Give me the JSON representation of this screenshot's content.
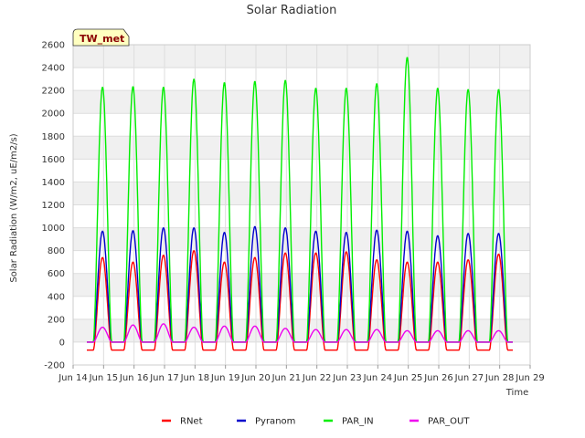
{
  "chart_data": {
    "type": "line",
    "title": "Solar Radiation",
    "xlabel": "Time",
    "ylabel": "Solar Radiation (W/m2, uE/m2/s)",
    "badge": "TW_met",
    "ylim": [
      -200,
      2600
    ],
    "yticks": [
      -200,
      0,
      200,
      400,
      600,
      800,
      1000,
      1200,
      1400,
      1600,
      1800,
      2000,
      2200,
      2400,
      2600
    ],
    "xlim": [
      14,
      29
    ],
    "xticks": [
      {
        "x": 14,
        "label": "Jun 14"
      },
      {
        "x": 15,
        "label": "Jun 15"
      },
      {
        "x": 16,
        "label": "Jun 16"
      },
      {
        "x": 17,
        "label": "Jun 17"
      },
      {
        "x": 18,
        "label": "Jun 18"
      },
      {
        "x": 19,
        "label": "Jun 19"
      },
      {
        "x": 20,
        "label": "Jun 20"
      },
      {
        "x": 21,
        "label": "Jun 21"
      },
      {
        "x": 22,
        "label": "Jun 22"
      },
      {
        "x": 23,
        "label": "Jun 23"
      },
      {
        "x": 24,
        "label": "Jun 24"
      },
      {
        "x": 25,
        "label": "Jun 25"
      },
      {
        "x": 26,
        "label": "Jun 26"
      },
      {
        "x": 27,
        "label": "Jun 27"
      },
      {
        "x": 28,
        "label": "Jun 28"
      },
      {
        "x": 29,
        "label": "Jun 29"
      }
    ],
    "days": [
      "Jun 14",
      "Jun 15",
      "Jun 16",
      "Jun 17",
      "Jun 18",
      "Jun 19",
      "Jun 20",
      "Jun 21",
      "Jun 22",
      "Jun 23",
      "Jun 24",
      "Jun 25",
      "Jun 26",
      "Jun 27"
    ],
    "series": [
      {
        "name": "RNet",
        "color": "#ff0000",
        "daily_peak": [
          740,
          700,
          760,
          800,
          700,
          740,
          780,
          780,
          790,
          720,
          700,
          700,
          720,
          770
        ],
        "night_value": -70
      },
      {
        "name": "Pyranom",
        "color": "#0000cc",
        "daily_peak": [
          970,
          975,
          1000,
          1000,
          960,
          1010,
          1000,
          970,
          960,
          980,
          970,
          930,
          950,
          950
        ],
        "night_value": 0
      },
      {
        "name": "PAR_IN",
        "color": "#00ee00",
        "daily_peak": [
          2230,
          2235,
          2230,
          2300,
          2270,
          2280,
          2290,
          2220,
          2220,
          2260,
          2490,
          2220,
          2210,
          2210
        ],
        "night_value": 0
      },
      {
        "name": "PAR_OUT",
        "color": "#ee00ee",
        "daily_peak": [
          130,
          150,
          160,
          130,
          140,
          140,
          120,
          110,
          110,
          110,
          100,
          100,
          100,
          100
        ],
        "night_value": 0
      }
    ],
    "grid": true,
    "legend_position": "bottom"
  }
}
